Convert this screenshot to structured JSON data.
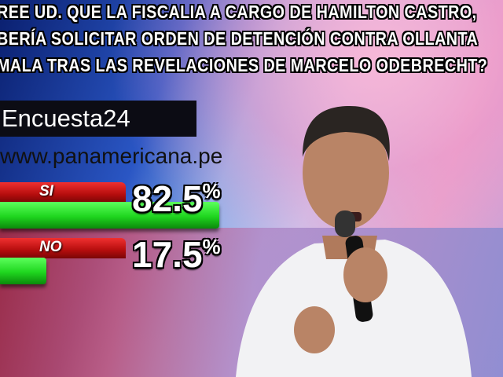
{
  "question": {
    "lines": [
      "REE UD. QUE LA FISCALIA  A CARGO DE HAMILTON CASTRO,",
      "BERÍA SOLICITAR ORDEN DE DETENCIÓN CONTRA OLLANTA",
      "MALA TRAS LAS REVELACIONES DE MARCELO ODEBRECHT?"
    ]
  },
  "brand": {
    "name": "Encuesta24",
    "site": "www.panamericana.pe"
  },
  "colors": {
    "bar_green": "#1fd61f",
    "bar_red": "#c01010",
    "brand_box": "#0c0c14"
  },
  "chart_data": {
    "type": "bar",
    "orientation": "horizontal",
    "categories": [
      "SI",
      "NO"
    ],
    "values": [
      82.5,
      17.5
    ],
    "value_labels": [
      "82.5",
      "17.5"
    ],
    "unit": "%",
    "xlim": [
      0,
      100
    ]
  }
}
